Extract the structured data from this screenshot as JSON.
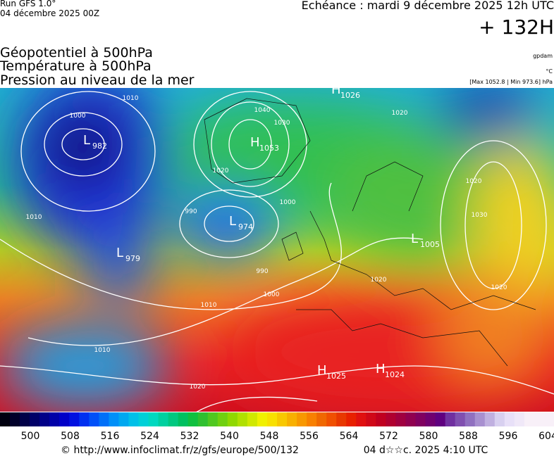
{
  "header": {
    "run": "Run GFS 1.0°",
    "date": "04 décembre 2025 00Z",
    "echeance": "Echéance : mardi 9 décembre 2025 12h UTC",
    "lead": "+ 132H"
  },
  "titles": [
    "Géopotentiel à 500hPa",
    "Température à 500hPa",
    "Pression au niveau de la mer"
  ],
  "units": {
    "geopotential": "gpdam",
    "temperature": "°C",
    "pressure": "[Max 1052.8 | Min 973.6] hPa"
  },
  "centers": [
    {
      "letter": "L",
      "value": 982
    },
    {
      "letter": "H",
      "value": 1053
    },
    {
      "letter": "L",
      "value": 974
    },
    {
      "letter": "L",
      "value": 979
    },
    {
      "letter": "L",
      "value": 1005
    },
    {
      "letter": "H",
      "value": 1026
    },
    {
      "letter": "H",
      "value": 1025
    },
    {
      "letter": "H",
      "value": 1024
    }
  ],
  "contour_labels": [
    1010,
    1000,
    1040,
    1030,
    1010,
    990,
    1000,
    990,
    1000,
    1010,
    1010,
    1020,
    1020,
    1020,
    1030,
    1020,
    1020,
    1020
  ],
  "colorbar_ticks": [
    500,
    508,
    516,
    524,
    532,
    540,
    548,
    556,
    564,
    572,
    580,
    588,
    596,
    604
  ],
  "footer": {
    "source": "© http://www.infoclimat.fr/z/gfs/europe/500/132",
    "generated": "04 d☆☆c. 2025  4:10 UTC"
  }
}
